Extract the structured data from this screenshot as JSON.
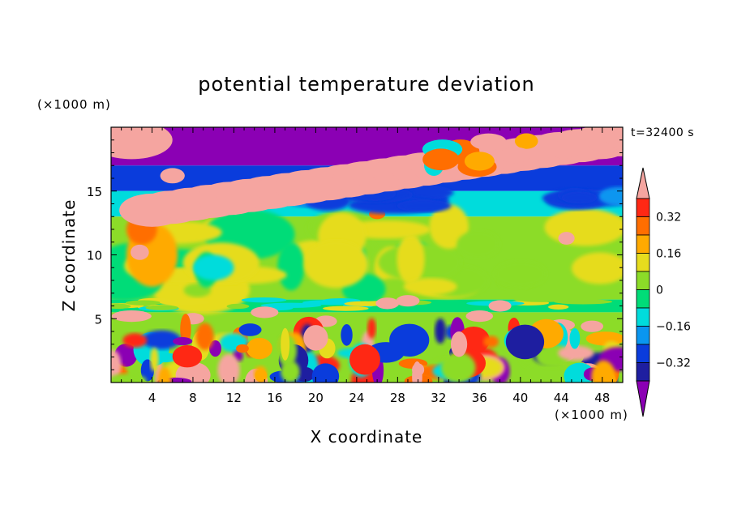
{
  "chart_data": {
    "type": "heatmap",
    "title": "potential temperature deviation",
    "xlabel": "X coordinate",
    "ylabel": "Z coordinate",
    "x_unit": "(×1000 m)",
    "y_unit": "(×1000 m)",
    "time_label": "t=32400 s",
    "xlim": [
      0,
      50
    ],
    "ylim": [
      0,
      20
    ],
    "x_ticks": [
      4,
      8,
      12,
      16,
      20,
      24,
      28,
      32,
      36,
      40,
      44,
      48
    ],
    "y_ticks": [
      5,
      10,
      15
    ],
    "colorbar": {
      "labels": [
        "0.32",
        "0.16",
        "0",
        "−0.16",
        "−0.32"
      ],
      "label_values": [
        0.32,
        0.16,
        0,
        -0.16,
        -0.32
      ],
      "levels": [
        -0.4,
        -0.32,
        -0.24,
        -0.16,
        -0.08,
        0,
        0.08,
        0.16,
        0.24,
        0.32,
        0.4
      ],
      "colors": [
        "#8b00b4",
        "#1e1ea0",
        "#0a3cdc",
        "#0a96f0",
        "#00dcdc",
        "#00dc78",
        "#8cdc28",
        "#e6dc1e",
        "#ffaa00",
        "#ff6e00",
        "#ff2814",
        "#f5a5a0"
      ]
    },
    "bands": [
      {
        "z_range": [
          17,
          20
        ],
        "value": -0.45,
        "note": "purple top layer with pink streaks"
      },
      {
        "z_range": [
          15,
          17
        ],
        "value": -0.3
      },
      {
        "z_range": [
          13,
          15
        ],
        "value": -0.12
      },
      {
        "z_range": [
          6.5,
          13
        ],
        "value": 0.05
      },
      {
        "z_range": [
          5.5,
          6.5
        ],
        "value": -0.08
      },
      {
        "z_range": [
          0,
          5.5
        ],
        "value": 0.0,
        "note": "turbulent mixed layer"
      }
    ]
  }
}
